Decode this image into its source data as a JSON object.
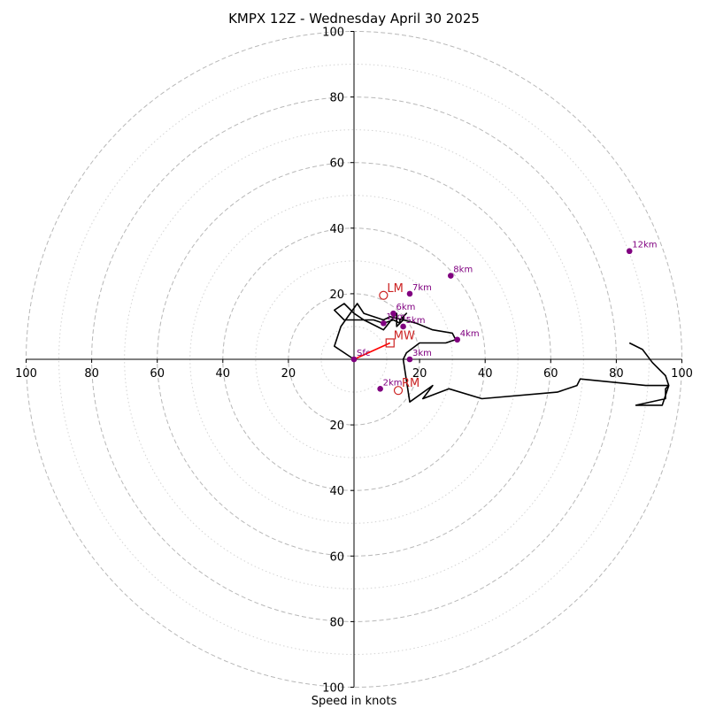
{
  "chart_data": {
    "type": "hodograph",
    "title": "KMPX 12Z - Wednesday April 30 2025",
    "xlabel": "Speed in knots",
    "ylabel": "",
    "xlim": [
      -100,
      100
    ],
    "ylim": [
      -100,
      100
    ],
    "rings": {
      "major": [
        20,
        40,
        60,
        80,
        100
      ],
      "minor": [
        10,
        30,
        50,
        70,
        90
      ]
    },
    "x_tick_labels": [
      "100",
      "80",
      "60",
      "40",
      "20",
      "20",
      "40",
      "60",
      "80",
      "100"
    ],
    "x_tick_values": [
      -100,
      -80,
      -60,
      -40,
      -20,
      20,
      40,
      60,
      80,
      100
    ],
    "y_tick_labels": [
      "100",
      "80",
      "60",
      "40",
      "20",
      "20",
      "40",
      "60",
      "80",
      "100"
    ],
    "y_tick_values": [
      100,
      80,
      60,
      40,
      20,
      -20,
      -40,
      -60,
      -80,
      -100
    ],
    "profile": {
      "u": [
        0,
        -6,
        -4,
        1,
        3,
        9,
        11,
        15,
        15,
        16,
        14,
        14,
        12,
        9,
        6,
        3,
        0,
        -3,
        -6,
        -3,
        0,
        3,
        7,
        9,
        13,
        13,
        15,
        19,
        24,
        30,
        31,
        28,
        20,
        16,
        15,
        17,
        24,
        21,
        29,
        39,
        62,
        68,
        69,
        89,
        96,
        95,
        95,
        86,
        94,
        96,
        95,
        91,
        88,
        84
      ],
      "v": [
        0,
        4,
        10,
        17,
        14,
        12,
        13,
        12,
        13,
        14,
        12,
        11,
        12,
        11,
        12,
        12,
        12,
        12,
        15,
        17,
        14,
        12,
        10,
        9,
        14,
        10,
        12,
        11,
        9,
        8,
        6,
        5,
        5,
        2,
        0,
        -13,
        -8,
        -12,
        -9,
        -12,
        -10,
        -8,
        -6,
        -8,
        -8,
        -9,
        -12,
        -14,
        -14,
        -8,
        -5,
        -1,
        3,
        5
      ]
    },
    "surface_wind": {
      "label": "Sfc",
      "u": 0,
      "v": 0
    },
    "height_markers": [
      {
        "label": "Sfc",
        "u": 0,
        "v": 0
      },
      {
        "label": "1km",
        "u": 9,
        "v": 11
      },
      {
        "label": "2km",
        "u": 8,
        "v": -9
      },
      {
        "label": "3km",
        "u": 17,
        "v": 0
      },
      {
        "label": "4km",
        "u": 31.5,
        "v": 6
      },
      {
        "label": "5km",
        "u": 15,
        "v": 10
      },
      {
        "label": "6km",
        "u": 12,
        "v": 14
      },
      {
        "label": "7km",
        "u": 17,
        "v": 20
      },
      {
        "label": "8km",
        "u": 29.5,
        "v": 25.5
      },
      {
        "label": "12km",
        "u": 84,
        "v": 33
      }
    ],
    "storm_motions": [
      {
        "label": "LM",
        "u": 9,
        "v": 19.5,
        "marker": "circle"
      },
      {
        "label": "RM",
        "u": 13.5,
        "v": -9.5,
        "marker": "circle"
      },
      {
        "label": "MW",
        "u": 11,
        "v": 5,
        "marker": "square"
      }
    ],
    "shear_vector": {
      "from": "Sfc",
      "to": "MW",
      "color": "#ff0000"
    },
    "colors": {
      "profile_line": "#000000",
      "height_marker": "#800080",
      "storm_motion": "#cc2222",
      "major_ring": "#b8b8b8",
      "minor_ring": "#d3d3d3",
      "shear_vector": "#ff0000"
    }
  }
}
